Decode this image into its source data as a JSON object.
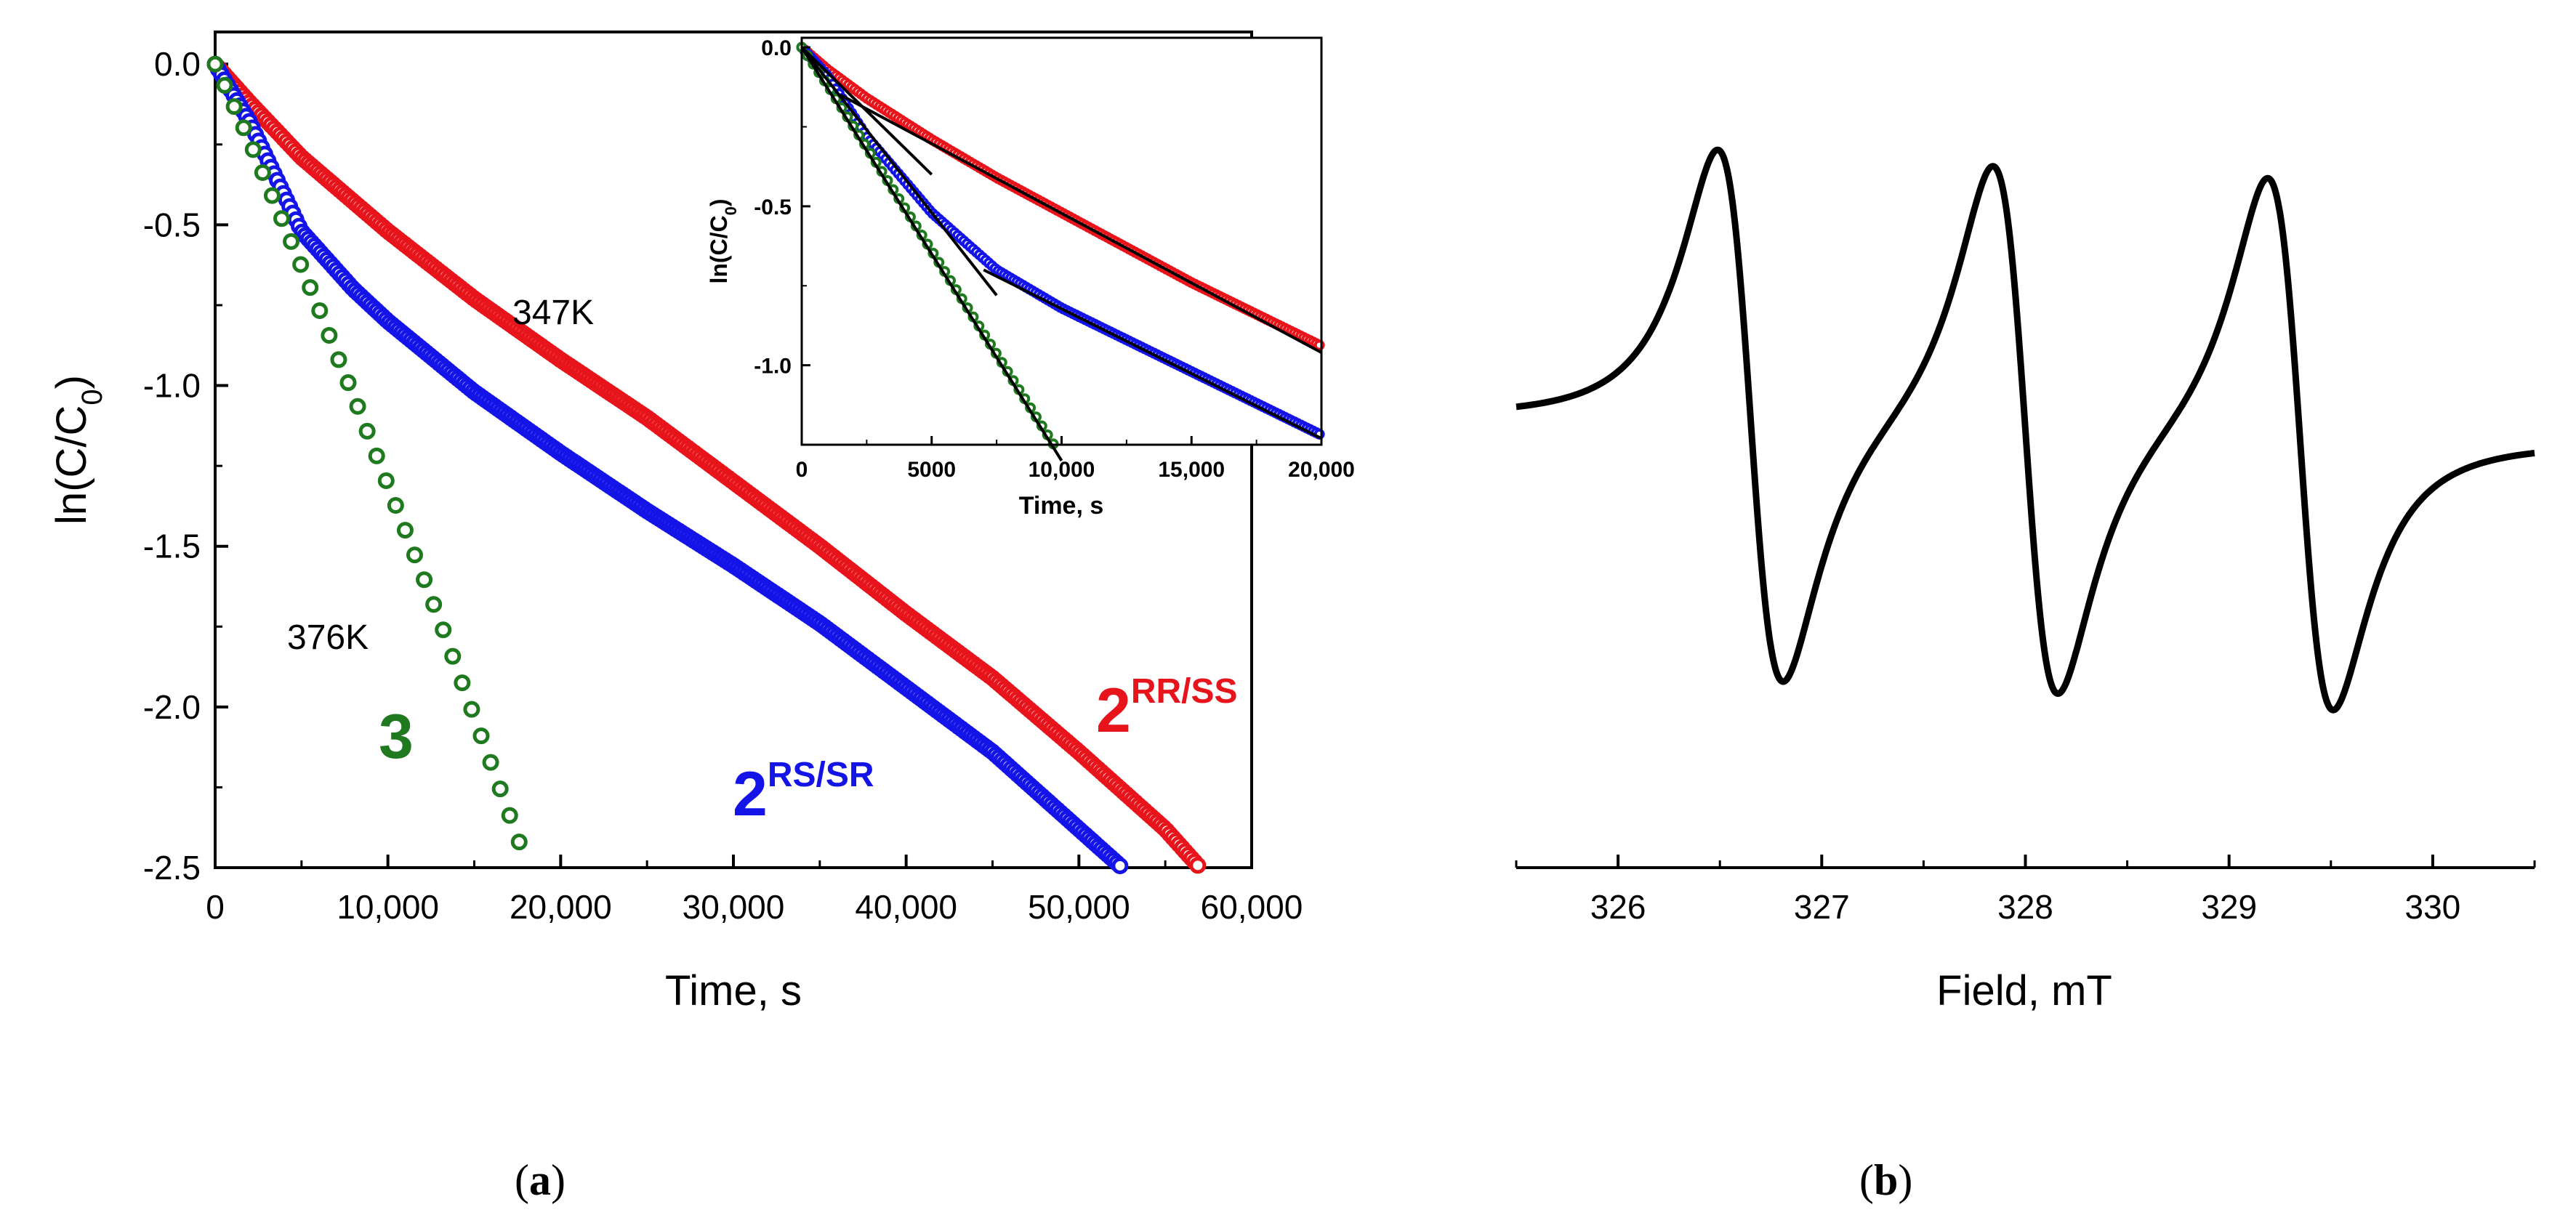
{
  "figure_labels": {
    "a": "a",
    "b": "b"
  },
  "chart_data": [
    {
      "id": "a-main",
      "type": "scatter",
      "xlabel": "Time, s",
      "ylabel_base": "ln(C/C",
      "ylabel_sub": "0",
      "ylabel_close": ")",
      "xlim": [
        0,
        60000
      ],
      "ylim": [
        -2.5,
        0.1
      ],
      "xticks": [
        0,
        10000,
        20000,
        30000,
        40000,
        50000,
        60000
      ],
      "xtick_labels": [
        "0",
        "10,000",
        "20,000",
        "30,000",
        "40,000",
        "50,000",
        "60,000"
      ],
      "yticks": [
        0.0,
        -0.5,
        -1.0,
        -1.5,
        -2.0,
        -2.5
      ],
      "ytick_labels": [
        "0.0",
        "-0.5",
        "-1.0",
        "-1.5",
        "-2.0",
        "-2.5"
      ],
      "series": [
        {
          "name": "2RR/SS",
          "base": "2",
          "sup": "RR/SS",
          "color": "#e8141b",
          "x": [
            0,
            2000,
            5000,
            10000,
            15000,
            20000,
            25000,
            30000,
            35000,
            40000,
            45000,
            50000,
            55000,
            57000
          ],
          "y": [
            0,
            -0.12,
            -0.29,
            -0.52,
            -0.73,
            -0.92,
            -1.1,
            -1.3,
            -1.5,
            -1.71,
            -1.91,
            -2.14,
            -2.38,
            -2.5
          ]
        },
        {
          "name": "2RS/SR",
          "base": "2",
          "sup": "RS/SR",
          "color": "#1414e8",
          "x": [
            0,
            2000,
            5000,
            8000,
            10000,
            15000,
            20000,
            25000,
            30000,
            35000,
            40000,
            45000,
            50000,
            52500
          ],
          "y": [
            0,
            -0.18,
            -0.52,
            -0.7,
            -0.8,
            -1.02,
            -1.21,
            -1.39,
            -1.56,
            -1.74,
            -1.94,
            -2.14,
            -2.38,
            -2.5
          ]
        },
        {
          "name": "3",
          "base": "3",
          "sup": "",
          "color": "#1f7a1f",
          "x": [
            0,
            1000,
            2000,
            3000,
            4000,
            5000,
            6000,
            7000,
            8000,
            9000,
            10000,
            11000,
            12000,
            13000,
            14000,
            15000,
            16000,
            17000,
            18000
          ],
          "y": [
            0,
            -0.12,
            -0.24,
            -0.37,
            -0.5,
            -0.63,
            -0.76,
            -0.9,
            -1.03,
            -1.17,
            -1.31,
            -1.45,
            -1.59,
            -1.73,
            -1.88,
            -2.03,
            -2.18,
            -2.33,
            -2.48
          ]
        }
      ],
      "annotations": [
        "347K",
        "376K"
      ]
    },
    {
      "id": "a-inset",
      "type": "scatter",
      "xlabel": "Time, s",
      "ylabel_base": "ln(C/C",
      "ylabel_sub": "0",
      "ylabel_close": ")",
      "xlim": [
        0,
        20000
      ],
      "ylim": [
        -1.25,
        0.03
      ],
      "xticks": [
        0,
        5000,
        10000,
        15000,
        20000
      ],
      "xtick_labels": [
        "0",
        "5000",
        "10,000",
        "15,000",
        "20,000"
      ],
      "yticks": [
        0.0,
        -0.5,
        -1.0
      ],
      "ytick_labels": [
        "0.0",
        "-0.5",
        "-1.0"
      ],
      "series": [
        {
          "name": "2RR/SS",
          "color": "#e8141b",
          "x": [
            0,
            1000,
            2500,
            5000,
            7500,
            10000,
            12500,
            15000,
            17500,
            20000
          ],
          "y": [
            0,
            -0.07,
            -0.16,
            -0.29,
            -0.41,
            -0.52,
            -0.63,
            -0.74,
            -0.84,
            -0.94
          ]
        },
        {
          "name": "2RS/SR",
          "color": "#1414e8",
          "x": [
            0,
            1000,
            2500,
            5000,
            7500,
            10000,
            12500,
            15000,
            17500,
            20000
          ],
          "y": [
            0,
            -0.09,
            -0.28,
            -0.52,
            -0.7,
            -0.82,
            -0.92,
            -1.02,
            -1.12,
            -1.22
          ]
        },
        {
          "name": "3",
          "color": "#1f7a1f",
          "x": [
            0,
            1000,
            2000,
            3000,
            4000,
            5000,
            6000,
            7000,
            8000,
            9000,
            9700
          ],
          "y": [
            0,
            -0.12,
            -0.25,
            -0.38,
            -0.51,
            -0.64,
            -0.77,
            -0.9,
            -1.03,
            -1.16,
            -1.25
          ]
        }
      ],
      "fit_lines": [
        {
          "x": [
            0,
            10000
          ],
          "y": [
            0,
            -1.3
          ]
        },
        {
          "x": [
            0,
            5000
          ],
          "y": [
            0,
            -0.4
          ]
        },
        {
          "x": [
            1500,
            20000
          ],
          "y": [
            -0.15,
            -0.96
          ]
        },
        {
          "x": [
            0,
            7500
          ],
          "y": [
            0,
            -0.78
          ]
        },
        {
          "x": [
            7000,
            20000
          ],
          "y": [
            -0.7,
            -1.23
          ]
        }
      ]
    },
    {
      "id": "b",
      "type": "line",
      "xlabel": "Field, mT",
      "ylabel": "",
      "xlim": [
        325.5,
        330.5
      ],
      "xticks": [
        326,
        327,
        328,
        329,
        330
      ],
      "xtick_labels": [
        "326",
        "327",
        "328",
        "329",
        "330"
      ],
      "ylim": [
        -1.2,
        1.0
      ],
      "baseline_left": 0,
      "baseline_right": -0.07,
      "lines": [
        {
          "center": 326.65,
          "width": 0.28,
          "amplitude": 1.0
        },
        {
          "center": 328.0,
          "width": 0.28,
          "amplitude": 1.0
        },
        {
          "center": 329.35,
          "width": 0.28,
          "amplitude": 1.0
        }
      ]
    }
  ]
}
